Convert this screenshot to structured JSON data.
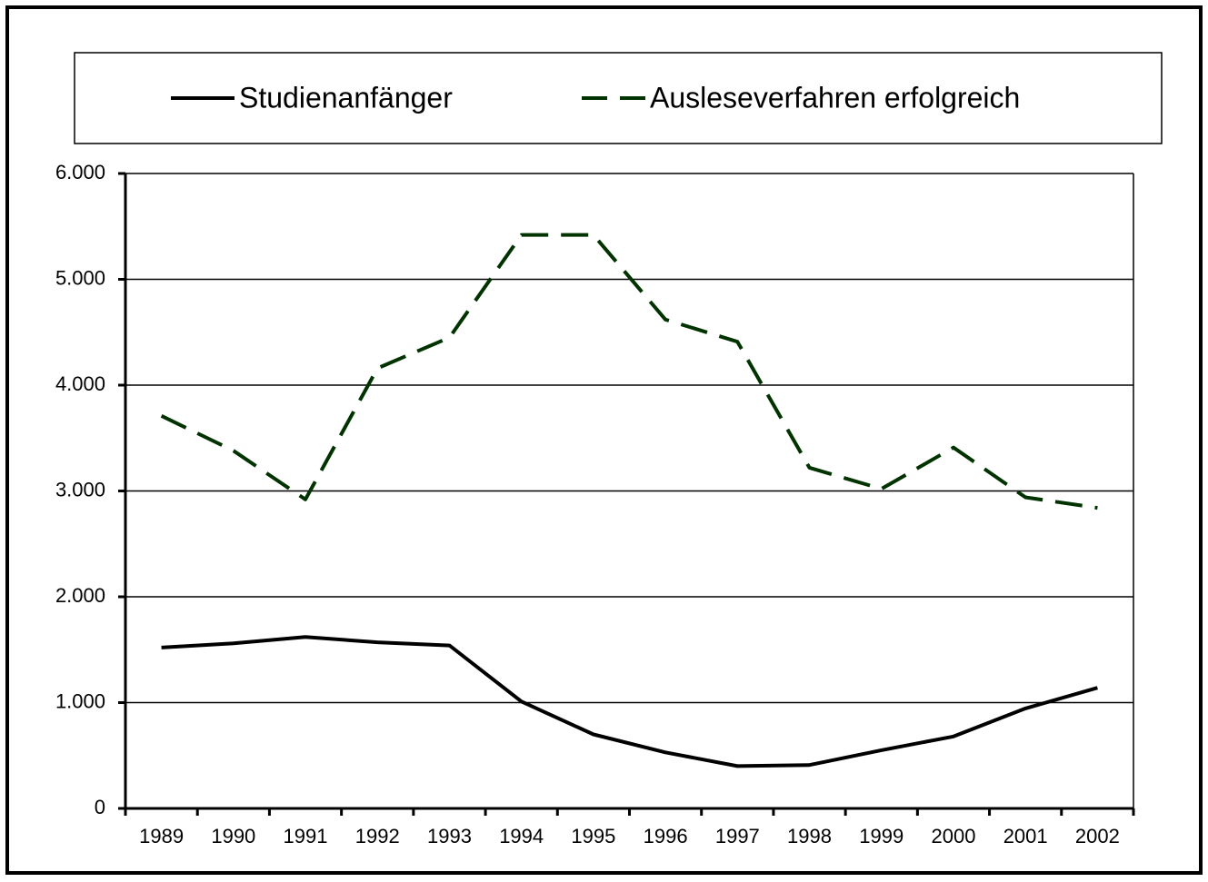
{
  "chart_data": {
    "type": "line",
    "categories": [
      "1989",
      "1990",
      "1991",
      "1992",
      "1993",
      "1994",
      "1995",
      "1996",
      "1997",
      "1998",
      "1999",
      "2000",
      "2001",
      "2002"
    ],
    "series": [
      {
        "name": "Studienanfänger",
        "color": "#000000",
        "dash": false,
        "values": [
          1520,
          1560,
          1620,
          1570,
          1540,
          1010,
          700,
          530,
          400,
          410,
          550,
          680,
          945,
          1140
        ]
      },
      {
        "name": "Ausleseverfahren erfolgreich",
        "color": "#003300",
        "dash": true,
        "values": [
          3710,
          3380,
          2920,
          4160,
          4450,
          5420,
          5420,
          4620,
          4410,
          3220,
          3020,
          3410,
          2940,
          2840
        ]
      }
    ],
    "ylim": [
      0,
      6000
    ],
    "yticks": [
      0,
      {
        "value": 1000,
        "label": "1.000"
      },
      {
        "value": 2000,
        "label": "2.000"
      },
      {
        "value": 3000,
        "label": "3.000"
      },
      {
        "value": 4000,
        "label": "4.000"
      },
      {
        "value": 5000,
        "label": "5.000"
      },
      {
        "value": 6000,
        "label": "6.000"
      }
    ],
    "grid": true,
    "legend": "top"
  }
}
